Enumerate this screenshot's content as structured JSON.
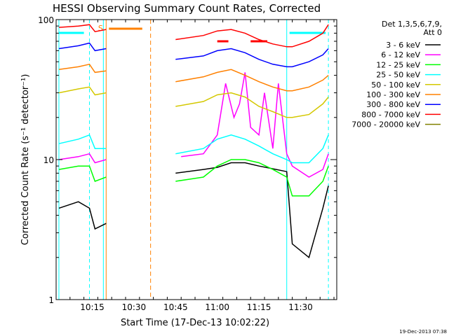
{
  "chart_data": {
    "type": "line",
    "title": "HESSI Observing Summary Count Rates, Corrected",
    "ylabel": "Corrected Count Rate (s⁻¹ detector⁻¹)",
    "xlabel": "Start Time (17-Dec-13 10:02:22)",
    "y_scale": "log",
    "ylim": [
      1,
      100
    ],
    "xlim": [
      "10:02",
      "11:43"
    ],
    "x_ticks": [
      "10:15",
      "10:30",
      "10:45",
      "11:00",
      "11:15",
      "11:30"
    ],
    "y_ticks": [
      "1",
      "10",
      "100"
    ],
    "legend_title": [
      "Det 1,3,5,6,7,9,",
      "Att 0"
    ],
    "legend_placement": "right",
    "timestamp": "19-Dec-2013 07:38",
    "flag_label": "S",
    "grid": false,
    "series": [
      {
        "name": "3 - 6 keV",
        "color": "#000000",
        "x": [
          "10:03",
          "10:10",
          "10:14",
          "10:16",
          "10:20",
          "10:40",
          "10:45",
          "10:55",
          "11:00",
          "11:05",
          "11:10",
          "11:15",
          "11:20",
          "11:25",
          "11:27",
          "11:33",
          "11:38",
          "11:40"
        ],
        "y": [
          4.5,
          5,
          4.5,
          3.2,
          3.5,
          null,
          8,
          8.5,
          8.8,
          9.5,
          9.5,
          9,
          8.6,
          8.2,
          2.5,
          2,
          4.5,
          6.5
        ]
      },
      {
        "name": "6 - 12 keV",
        "color": "#ff00ff",
        "x": [
          "10:03",
          "10:10",
          "10:14",
          "10:16",
          "10:20",
          "10:40",
          "10:47",
          "10:55",
          "11:00",
          "11:03",
          "11:06",
          "11:08",
          "11:10",
          "11:12",
          "11:15",
          "11:17",
          "11:20",
          "11:22",
          "11:25",
          "11:27",
          "11:33",
          "11:38",
          "11:40"
        ],
        "y": [
          10,
          10.5,
          11,
          9.5,
          10,
          null,
          10.5,
          11,
          15,
          35,
          20,
          25,
          42,
          17,
          15,
          30,
          12,
          35,
          11,
          9,
          7.5,
          8.5,
          11
        ]
      },
      {
        "name": "12 - 25 keV",
        "color": "#00ff00",
        "x": [
          "10:03",
          "10:10",
          "10:14",
          "10:16",
          "10:20",
          "10:40",
          "10:45",
          "10:55",
          "11:00",
          "11:05",
          "11:10",
          "11:15",
          "11:20",
          "11:25",
          "11:27",
          "11:33",
          "11:38",
          "11:40"
        ],
        "y": [
          8.5,
          9,
          9,
          7,
          7.5,
          null,
          7,
          7.5,
          9,
          10,
          10,
          9.5,
          8.5,
          7.5,
          5.5,
          5.5,
          7,
          9
        ]
      },
      {
        "name": "25 - 50 keV",
        "color": "#00ffff",
        "x": [
          "10:03",
          "10:10",
          "10:14",
          "10:16",
          "10:20",
          "10:40",
          "10:45",
          "10:55",
          "11:00",
          "11:05",
          "11:10",
          "11:15",
          "11:20",
          "11:25",
          "11:27",
          "11:33",
          "11:38",
          "11:40"
        ],
        "y": [
          13,
          14,
          15,
          12,
          12,
          null,
          11,
          12,
          14,
          15,
          14,
          12.5,
          11,
          10,
          9.5,
          9.5,
          12,
          15
        ]
      },
      {
        "name": "50 - 100 keV",
        "color": "#d4c800",
        "x": [
          "10:03",
          "10:10",
          "10:14",
          "10:16",
          "10:20",
          "10:40",
          "10:45",
          "10:55",
          "11:00",
          "11:05",
          "11:10",
          "11:15",
          "11:20",
          "11:25",
          "11:27",
          "11:33",
          "11:38",
          "11:40"
        ],
        "y": [
          30,
          32,
          33,
          29,
          30,
          null,
          24,
          26,
          29,
          30,
          28,
          24,
          22,
          20,
          20,
          21,
          25,
          28
        ]
      },
      {
        "name": "100 - 300 keV",
        "color": "#ff8000",
        "x": [
          "10:03",
          "10:10",
          "10:14",
          "10:16",
          "10:20",
          "10:40",
          "10:45",
          "10:55",
          "11:00",
          "11:05",
          "11:10",
          "11:15",
          "11:20",
          "11:25",
          "11:27",
          "11:33",
          "11:38",
          "11:40"
        ],
        "y": [
          44,
          46,
          48,
          42,
          43,
          null,
          36,
          39,
          42,
          44,
          40,
          36,
          33,
          31,
          31,
          33,
          37,
          40
        ]
      },
      {
        "name": "300 - 800 keV",
        "color": "#0000ff",
        "x": [
          "10:03",
          "10:10",
          "10:14",
          "10:16",
          "10:20",
          "10:40",
          "10:45",
          "10:55",
          "11:00",
          "11:05",
          "11:10",
          "11:15",
          "11:20",
          "11:25",
          "11:27",
          "11:33",
          "11:38",
          "11:40"
        ],
        "y": [
          62,
          65,
          68,
          60,
          62,
          null,
          52,
          55,
          60,
          62,
          58,
          52,
          48,
          46,
          46,
          50,
          56,
          62
        ]
      },
      {
        "name": "800 - 7000 keV",
        "color": "#ff0000",
        "x": [
          "10:03",
          "10:10",
          "10:14",
          "10:16",
          "10:20",
          "10:40",
          "10:45",
          "10:55",
          "11:00",
          "11:05",
          "11:10",
          "11:15",
          "11:20",
          "11:25",
          "11:27",
          "11:33",
          "11:38",
          "11:40"
        ],
        "y": [
          88,
          90,
          92,
          82,
          85,
          null,
          72,
          77,
          83,
          85,
          80,
          72,
          67,
          64,
          64,
          70,
          80,
          92
        ]
      },
      {
        "name": "7000 - 20000 keV",
        "color": "#808000",
        "x": [],
        "y": []
      }
    ]
  }
}
